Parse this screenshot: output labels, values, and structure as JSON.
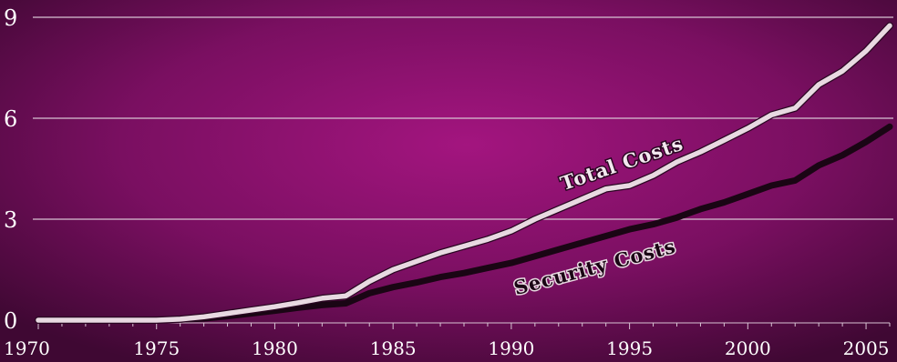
{
  "chart_data": {
    "type": "line",
    "title": "",
    "xlabel": "",
    "ylabel": "",
    "xlim": [
      1970,
      2006
    ],
    "ylim": [
      0,
      9
    ],
    "grid": true,
    "x_ticks": [
      1970,
      1975,
      1980,
      1985,
      1990,
      1995,
      2000,
      2005
    ],
    "x_tick_labels": [
      "1970",
      "1975",
      "1980",
      "1985",
      "1990",
      "1995",
      "2000",
      "2005"
    ],
    "y_ticks": [
      0,
      3,
      6,
      9
    ],
    "y_tick_labels": [
      "0",
      "3",
      "6",
      "9"
    ],
    "x": [
      1970,
      1975,
      1976,
      1977,
      1978,
      1979,
      1980,
      1981,
      1982,
      1983,
      1984,
      1985,
      1986,
      1987,
      1988,
      1989,
      1990,
      1991,
      1992,
      1993,
      1994,
      1995,
      1996,
      1997,
      1998,
      1999,
      2000,
      2001,
      2002,
      2003,
      2004,
      2005,
      2006
    ],
    "series": [
      {
        "name": "Total Costs",
        "values": [
          0,
          0,
          0.03,
          0.1,
          0.2,
          0.3,
          0.4,
          0.52,
          0.65,
          0.72,
          1.15,
          1.5,
          1.75,
          2.0,
          2.2,
          2.4,
          2.65,
          3.0,
          3.3,
          3.6,
          3.9,
          4.0,
          4.3,
          4.7,
          5.0,
          5.35,
          5.7,
          6.1,
          6.3,
          7.0,
          7.4,
          8.0,
          8.75
        ],
        "color": "#e8d9e1"
      },
      {
        "name": "Security Costs",
        "values": [
          0,
          0,
          0.02,
          0.05,
          0.12,
          0.2,
          0.28,
          0.37,
          0.45,
          0.5,
          0.8,
          0.98,
          1.12,
          1.28,
          1.4,
          1.55,
          1.7,
          1.9,
          2.1,
          2.3,
          2.5,
          2.7,
          2.85,
          3.05,
          3.3,
          3.5,
          3.75,
          4.0,
          4.15,
          4.6,
          4.9,
          5.3,
          5.75
        ],
        "color": "#1a0514"
      }
    ],
    "colors": {
      "background_center": "#a3157f",
      "background_edge": "#4a0a3b",
      "gridline": "#d8c3d3",
      "axis_text": "#ffffff"
    }
  }
}
